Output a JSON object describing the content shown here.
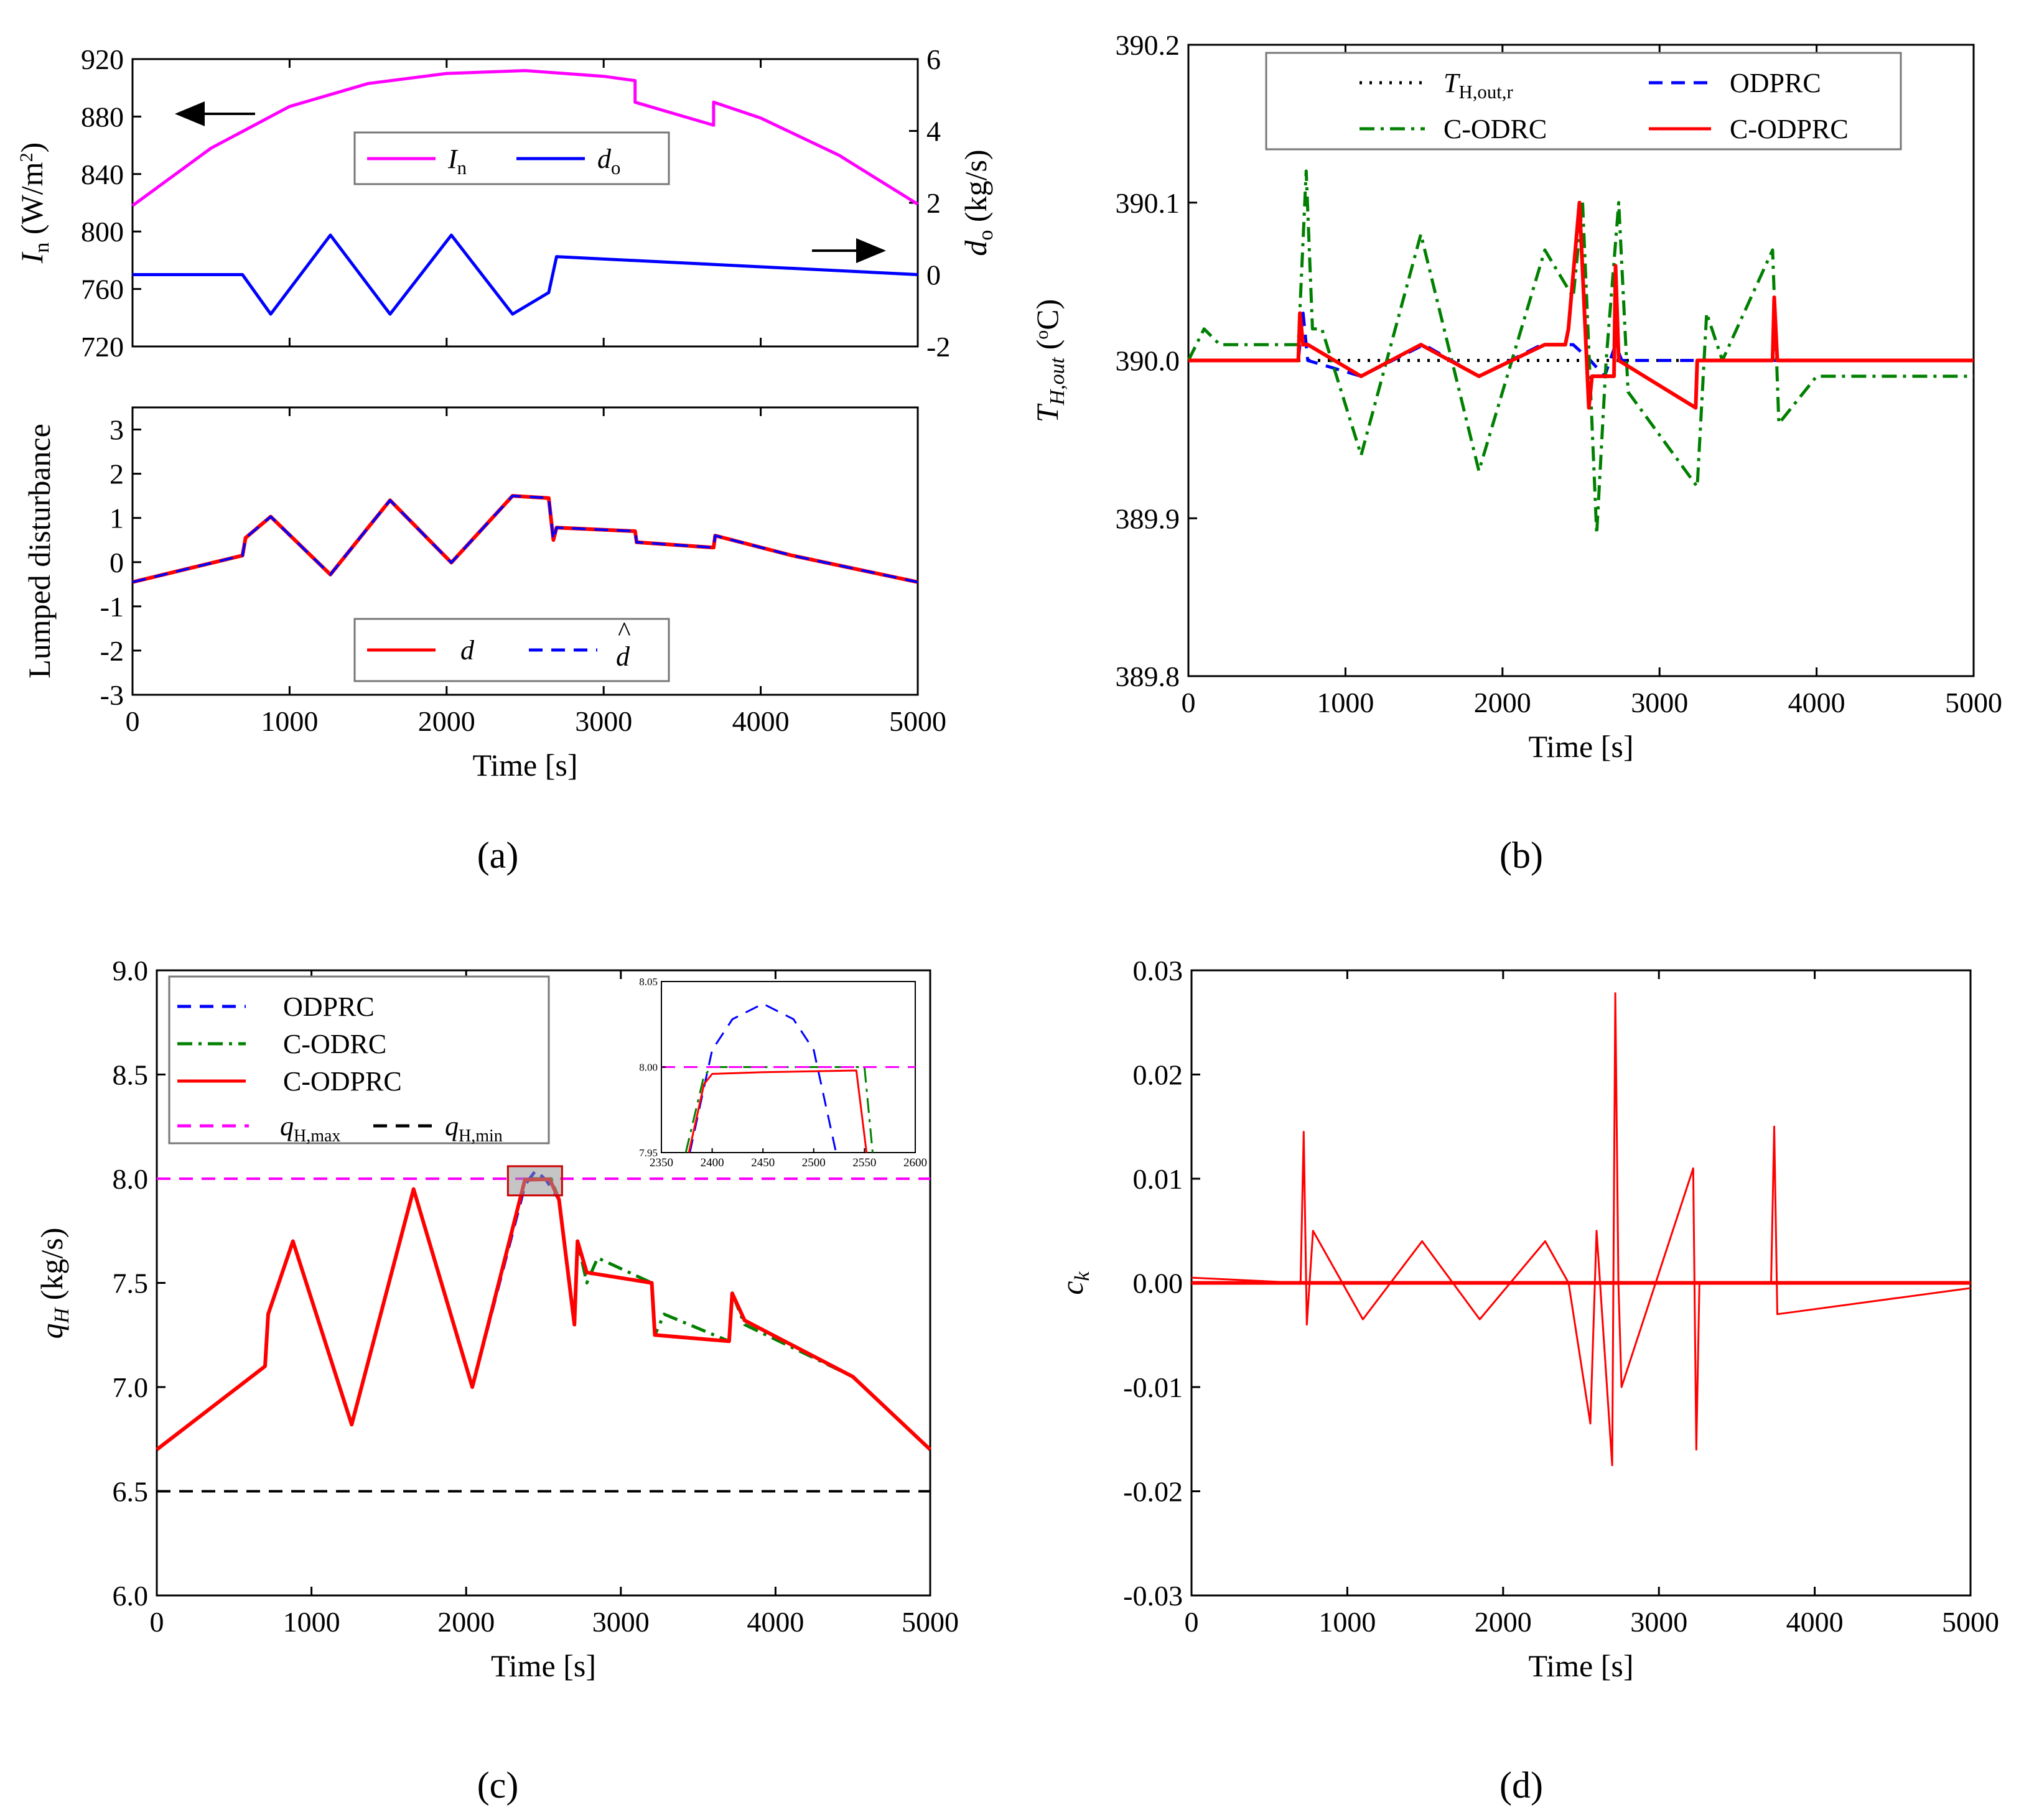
{
  "figure": {
    "panel_labels": [
      "(a)",
      "(b)",
      "(c)",
      "(d)"
    ]
  },
  "chart_data": [
    {
      "id": "a-top",
      "type": "line",
      "xlabel": "",
      "ylabel_left": "I_n (W/m^2)",
      "ylabel_right": "d_o (kg/s)",
      "xlim": [
        0,
        5000
      ],
      "ylim_left": [
        720,
        920
      ],
      "ylim_right": [
        -2,
        6
      ],
      "xticks": [
        0,
        1000,
        2000,
        3000,
        4000,
        5000
      ],
      "yticks_left": [
        "720",
        "760",
        "800",
        "840",
        "880",
        "920"
      ],
      "yticks_right": [
        "-2",
        "0",
        "2",
        "4",
        "6"
      ],
      "legend": [
        "In",
        "do"
      ],
      "annotations": [
        "left arrow points to I_n axis",
        "right arrow points to d_o axis"
      ],
      "series": [
        {
          "name": "In",
          "axis": "left",
          "color": "#ff00ff",
          "x": [
            0,
            500,
            1000,
            1500,
            2000,
            2500,
            3000,
            3200,
            3200,
            3700,
            3700,
            4000,
            4500,
            5000
          ],
          "y": [
            818,
            858,
            887,
            903,
            910,
            912,
            908,
            905,
            890,
            874,
            890,
            879,
            853,
            819
          ]
        },
        {
          "name": "do",
          "axis": "right",
          "color": "#0000ff",
          "x": [
            0,
            700,
            880,
            1260,
            1640,
            2030,
            2420,
            2650,
            2700,
            5000
          ],
          "y": [
            0,
            0,
            -1.1,
            1.1,
            -1.1,
            1.1,
            -1.1,
            -0.5,
            0.5,
            0
          ]
        }
      ]
    },
    {
      "id": "a-bottom",
      "type": "line",
      "xlabel": "Time [s]",
      "ylabel": "Lumped disturbance",
      "xlim": [
        0,
        5000
      ],
      "ylim": [
        -3,
        3.5
      ],
      "xticks": [
        "0",
        "1000",
        "2000",
        "3000",
        "4000",
        "5000"
      ],
      "yticks": [
        "-3",
        "-2",
        "-1",
        "0",
        "1",
        "2",
        "3"
      ],
      "legend": [
        "d",
        "d-hat"
      ],
      "series": [
        {
          "name": "d",
          "color": "#ff0000",
          "dash": "solid",
          "x": [
            0,
            700,
            720,
            880,
            1260,
            1640,
            2030,
            2420,
            2650,
            2680,
            2700,
            3200,
            3210,
            3700,
            3710,
            4200,
            5000
          ],
          "y": [
            -0.45,
            0.15,
            0.55,
            1.03,
            -0.28,
            1.4,
            -0.01,
            1.5,
            1.45,
            0.5,
            0.78,
            0.7,
            0.45,
            0.33,
            0.6,
            0.15,
            -0.45
          ]
        },
        {
          "name": "d-hat",
          "color": "#0000ff",
          "dash": "dashed",
          "x": [
            0,
            700,
            720,
            880,
            1260,
            1640,
            2030,
            2420,
            2650,
            2680,
            2700,
            3200,
            3210,
            3700,
            3710,
            4200,
            5000
          ],
          "y": [
            -0.45,
            0.15,
            0.55,
            1.03,
            -0.28,
            1.4,
            -0.01,
            1.5,
            1.45,
            0.5,
            0.78,
            0.7,
            0.45,
            0.33,
            0.6,
            0.15,
            -0.45
          ]
        }
      ]
    },
    {
      "id": "b",
      "type": "line",
      "xlabel": "Time [s]",
      "ylabel": "T_H,out (°C)",
      "xlim": [
        0,
        5000
      ],
      "ylim": [
        389.8,
        390.2
      ],
      "xticks": [
        "0",
        "1000",
        "2000",
        "3000",
        "4000",
        "5000"
      ],
      "yticks": [
        "389.8",
        "389.9",
        "390.0",
        "390.1",
        "390.2"
      ],
      "legend": [
        "T_H,out,r",
        "ODPRC",
        "C-ODRC",
        "C-ODPRC"
      ],
      "series": [
        {
          "name": "T_H,out,r",
          "color": "#000000",
          "dash": "dotted",
          "x": [
            0,
            5000
          ],
          "y": [
            390.0,
            390.0
          ]
        },
        {
          "name": "ODPRC",
          "color": "#0000ff",
          "dash": "dashed",
          "x": [
            0,
            700,
            730,
            760,
            1100,
            1500,
            1850,
            2250,
            2450,
            2560,
            2650,
            2720,
            2760,
            5000
          ],
          "y": [
            390.0,
            390.0,
            390.03,
            390.0,
            389.99,
            390.01,
            389.99,
            390.01,
            390.01,
            390.0,
            389.99,
            390.01,
            390.0,
            390.0
          ]
        },
        {
          "name": "C-ODRC",
          "color": "#008000",
          "dash": "dashdot",
          "x": [
            0,
            100,
            200,
            700,
            750,
            790,
            850,
            1100,
            1480,
            1850,
            2270,
            2450,
            2510,
            2600,
            2660,
            2740,
            2800,
            3240,
            3300,
            3400,
            3720,
            3760,
            4000,
            5000
          ],
          "y": [
            390.0,
            390.02,
            390.01,
            390.01,
            390.12,
            390.02,
            390.02,
            389.94,
            390.08,
            389.93,
            390.07,
            390.04,
            390.1,
            389.89,
            390.0,
            390.1,
            389.98,
            389.92,
            390.03,
            390.0,
            390.07,
            389.96,
            389.99,
            389.99
          ]
        },
        {
          "name": "C-ODPRC",
          "color": "#ff0000",
          "dash": "solid",
          "x": [
            0,
            700,
            710,
            730,
            760,
            1100,
            1480,
            1850,
            2270,
            2400,
            2420,
            2490,
            2550,
            2570,
            2710,
            2720,
            2740,
            3230,
            3240,
            3720,
            3730,
            3750,
            5000
          ],
          "y": [
            390.0,
            390.0,
            390.03,
            390.01,
            390.01,
            389.99,
            390.01,
            389.99,
            390.01,
            390.01,
            390.02,
            390.1,
            389.97,
            389.99,
            389.99,
            390.06,
            390.0,
            389.97,
            390.0,
            390.0,
            390.04,
            390.0,
            390.0
          ]
        }
      ]
    },
    {
      "id": "c",
      "type": "line",
      "xlabel": "Time [s]",
      "ylabel": "q_H (kg/s)",
      "xlim": [
        0,
        5000
      ],
      "ylim": [
        6.0,
        9.0
      ],
      "xticks": [
        "0",
        "1000",
        "2000",
        "3000",
        "4000",
        "5000"
      ],
      "yticks": [
        "6.0",
        "6.5",
        "7.0",
        "7.5",
        "8.0",
        "8.5",
        "9.0"
      ],
      "legend": [
        "ODPRC",
        "C-ODRC",
        "C-ODPRC",
        "q_H,max",
        "q_H,min"
      ],
      "series": [
        {
          "name": "ODPRC",
          "color": "#0000ff",
          "dash": "dashed",
          "x": [
            0,
            700,
            720,
            880,
            1260,
            1660,
            2040,
            2380,
            2450,
            2520,
            2600,
            2700,
            2720,
            2780,
            3200,
            3220,
            3700,
            3720,
            3800,
            4500,
            5000
          ],
          "y": [
            6.7,
            7.1,
            7.35,
            7.7,
            6.82,
            7.95,
            7.0,
            7.97,
            8.04,
            7.99,
            7.9,
            7.3,
            7.7,
            7.55,
            7.5,
            7.25,
            7.22,
            7.45,
            7.32,
            7.05,
            6.7
          ]
        },
        {
          "name": "C-ODRC",
          "color": "#008000",
          "dash": "dashdot",
          "x": [
            0,
            700,
            720,
            880,
            1260,
            1660,
            2040,
            2380,
            2550,
            2600,
            2700,
            2720,
            2780,
            2850,
            3200,
            3220,
            3280,
            3700,
            3720,
            3800,
            4500,
            5000
          ],
          "y": [
            6.7,
            7.1,
            7.35,
            7.7,
            6.82,
            7.95,
            7.0,
            8.0,
            8.0,
            7.9,
            7.3,
            7.7,
            7.5,
            7.62,
            7.5,
            7.25,
            7.35,
            7.22,
            7.45,
            7.3,
            7.05,
            6.7
          ]
        },
        {
          "name": "C-ODPRC",
          "color": "#ff0000",
          "dash": "solid",
          "x": [
            0,
            700,
            720,
            880,
            1260,
            1660,
            2040,
            2380,
            2540,
            2600,
            2700,
            2720,
            2780,
            3200,
            3220,
            3700,
            3720,
            3800,
            4500,
            5000
          ],
          "y": [
            6.7,
            7.1,
            7.35,
            7.7,
            6.82,
            7.95,
            7.0,
            7.995,
            7.998,
            7.9,
            7.3,
            7.7,
            7.55,
            7.5,
            7.25,
            7.22,
            7.45,
            7.32,
            7.05,
            6.7
          ]
        },
        {
          "name": "q_H,max",
          "color": "#ff00ff",
          "dash": "dashed",
          "x": [
            0,
            5000
          ],
          "y": [
            8.0,
            8.0
          ]
        },
        {
          "name": "q_H,min",
          "color": "#000000",
          "dash": "dashed",
          "x": [
            0,
            5000
          ],
          "y": [
            6.5,
            6.5
          ]
        }
      ],
      "inset": {
        "xlim": [
          2350,
          2600
        ],
        "ylim": [
          7.95,
          8.05
        ],
        "xticks": [
          "2350",
          "2400",
          "2450",
          "2500",
          "2550",
          "2600"
        ],
        "yticks": [
          "7.95",
          "8.00",
          "8.05"
        ],
        "series": [
          {
            "name": "ODPRC",
            "color": "#0000ff",
            "dash": "dashed",
            "x": [
              2378,
              2400,
              2420,
              2450,
              2480,
              2500,
              2522
            ],
            "y": [
              7.95,
              8.01,
              8.028,
              8.037,
              8.028,
              8.01,
              7.95
            ]
          },
          {
            "name": "C-ODRC",
            "color": "#008000",
            "dash": "dashdot",
            "x": [
              2374,
              2392,
              2400,
              2550,
              2558
            ],
            "y": [
              7.95,
              7.995,
              8.0,
              8.0,
              7.95
            ]
          },
          {
            "name": "C-ODPRC",
            "color": "#ff0000",
            "dash": "solid",
            "x": [
              2377,
              2392,
              2400,
              2450,
              2542,
              2552
            ],
            "y": [
              7.95,
              7.99,
              7.996,
              7.997,
              7.998,
              7.95
            ]
          },
          {
            "name": "q_H,max",
            "color": "#ff00ff",
            "dash": "dashed",
            "x": [
              2350,
              2600
            ],
            "y": [
              8.0,
              8.0
            ]
          }
        ]
      }
    },
    {
      "id": "d",
      "type": "line",
      "xlabel": "Time [s]",
      "ylabel": "c_k",
      "xlim": [
        0,
        5000
      ],
      "ylim": [
        -0.03,
        0.03
      ],
      "xticks": [
        "0",
        "1000",
        "2000",
        "3000",
        "4000",
        "5000"
      ],
      "yticks": [
        "-0.03",
        "-0.02",
        "-0.01",
        "0.00",
        "0.01",
        "0.02",
        "0.03"
      ],
      "series": [
        {
          "name": "c_k",
          "color": "#ff0000",
          "x": [
            0,
            700,
            720,
            740,
            780,
            1100,
            1480,
            1850,
            2270,
            2420,
            2560,
            2600,
            2700,
            2720,
            2740,
            2760,
            3220,
            3240,
            3260,
            3720,
            3740,
            3760,
            5000
          ],
          "y": [
            0.0005,
            0.0,
            0.0145,
            -0.004,
            0.005,
            -0.0035,
            0.004,
            -0.0035,
            0.004,
            0.0,
            -0.0135,
            0.005,
            -0.0175,
            0.0278,
            0.0,
            -0.01,
            0.011,
            -0.016,
            0.0,
            0.0,
            0.015,
            -0.003,
            -0.0005
          ]
        }
      ]
    }
  ]
}
